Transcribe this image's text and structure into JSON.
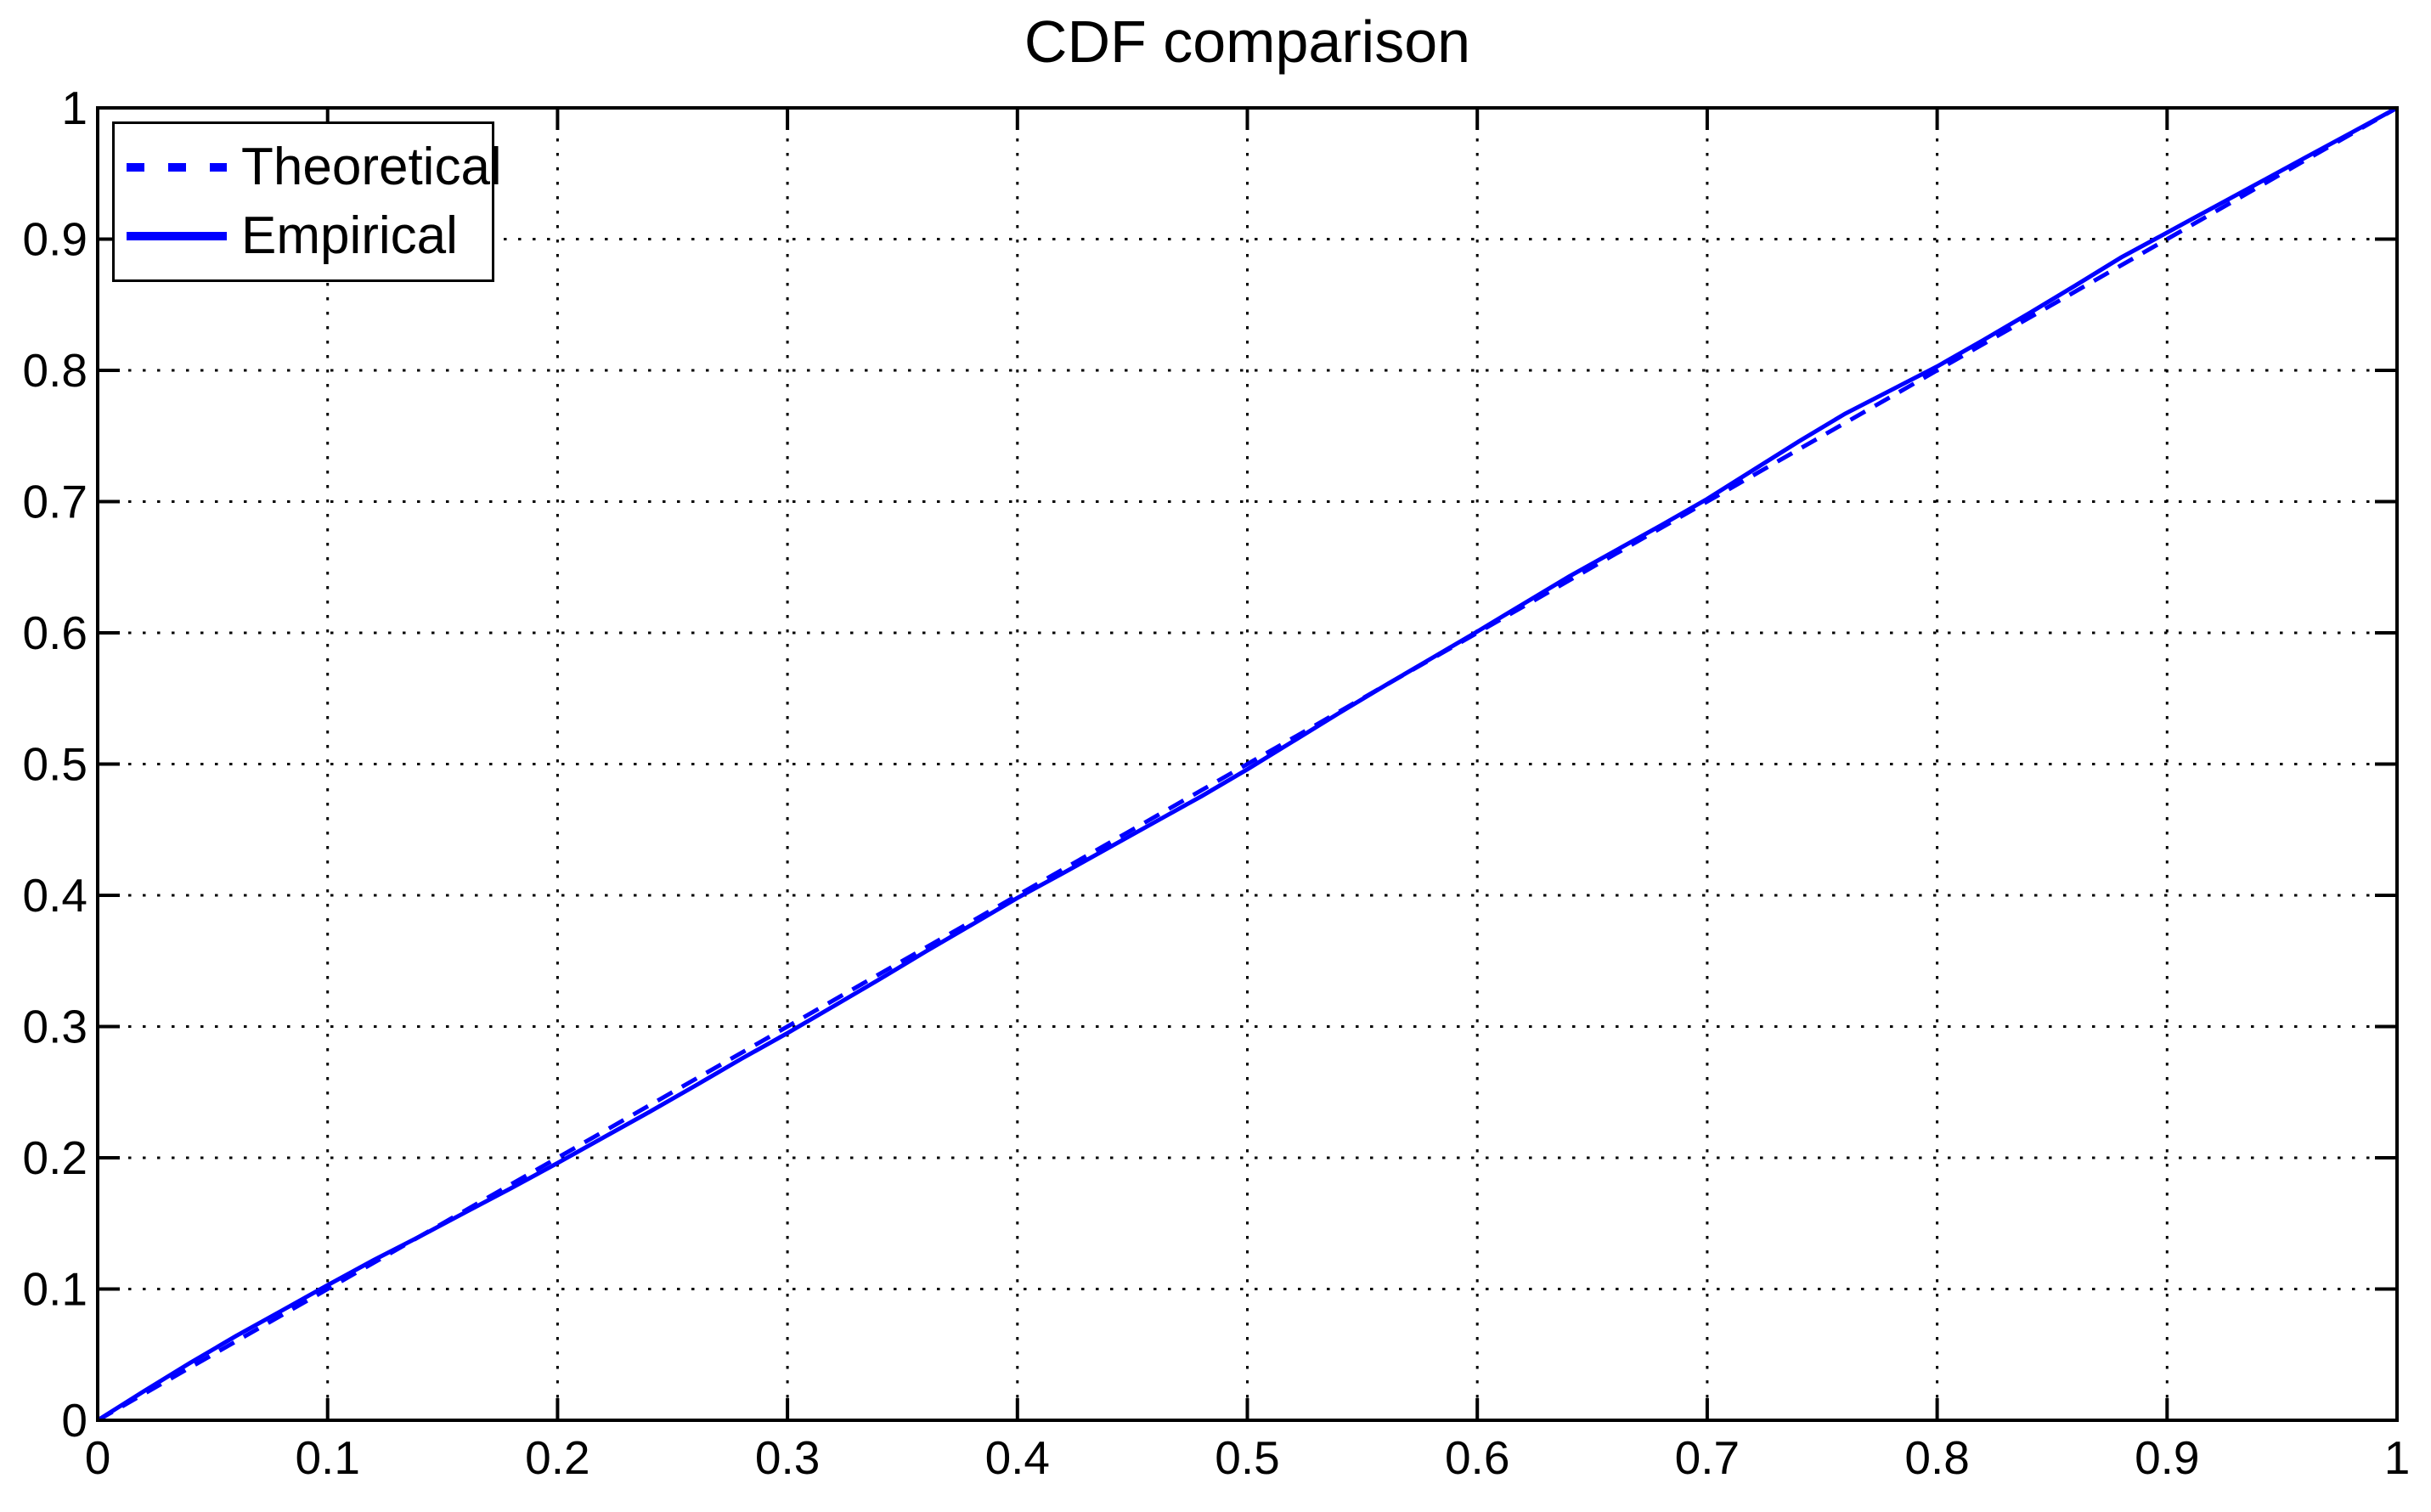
{
  "figure": {
    "background": "#ffffff",
    "title": "CDF comparison"
  },
  "legend": {
    "location": "northwest",
    "items": [
      {
        "label": "Theoretical",
        "line_style": "dashed",
        "color": "#0000ff"
      },
      {
        "label": "Empirical",
        "line_style": "solid",
        "color": "#0000ff"
      }
    ]
  },
  "chart_data": {
    "type": "line",
    "title": "CDF comparison",
    "xlabel": "",
    "ylabel": "",
    "xlim": [
      0,
      1
    ],
    "ylim": [
      0,
      1
    ],
    "xticks": [
      0,
      0.1,
      0.2,
      0.3,
      0.4,
      0.5,
      0.6,
      0.7,
      0.8,
      0.9,
      1
    ],
    "yticks": [
      0,
      0.1,
      0.2,
      0.3,
      0.4,
      0.5,
      0.6,
      0.7,
      0.8,
      0.9,
      1
    ],
    "xtick_labels": [
      "0",
      "0.1",
      "0.2",
      "0.3",
      "0.4",
      "0.5",
      "0.6",
      "0.7",
      "0.8",
      "0.9",
      "1"
    ],
    "ytick_labels": [
      "0",
      "0.1",
      "0.2",
      "0.3",
      "0.4",
      "0.5",
      "0.6",
      "0.7",
      "0.8",
      "0.9",
      "1"
    ],
    "grid": "dotted",
    "grid_color": "#000000",
    "axis_color": "#000000",
    "legend_position": "northwest",
    "series": [
      {
        "name": "Theoretical",
        "style": "dashed",
        "color": "#0000ff",
        "points": [
          [
            0,
            0
          ],
          [
            1,
            1
          ]
        ]
      },
      {
        "name": "Empirical",
        "style": "solid",
        "color": "#0000ff",
        "points": [
          [
            0,
            0
          ],
          [
            0.02,
            0.022
          ],
          [
            0.04,
            0.0435
          ],
          [
            0.06,
            0.064
          ],
          [
            0.08,
            0.0835
          ],
          [
            0.1,
            0.103
          ],
          [
            0.12,
            0.122
          ],
          [
            0.14,
            0.14
          ],
          [
            0.16,
            0.1585
          ],
          [
            0.18,
            0.177
          ],
          [
            0.2,
            0.196
          ],
          [
            0.22,
            0.2155
          ],
          [
            0.24,
            0.235
          ],
          [
            0.26,
            0.255
          ],
          [
            0.28,
            0.2755
          ],
          [
            0.3,
            0.295
          ],
          [
            0.32,
            0.3155
          ],
          [
            0.34,
            0.336
          ],
          [
            0.36,
            0.357
          ],
          [
            0.38,
            0.3775
          ],
          [
            0.4,
            0.398
          ],
          [
            0.42,
            0.417
          ],
          [
            0.44,
            0.4365
          ],
          [
            0.46,
            0.456
          ],
          [
            0.48,
            0.4755
          ],
          [
            0.5,
            0.496
          ],
          [
            0.52,
            0.5175
          ],
          [
            0.54,
            0.539
          ],
          [
            0.56,
            0.56
          ],
          [
            0.58,
            0.5805
          ],
          [
            0.6,
            0.601
          ],
          [
            0.62,
            0.622
          ],
          [
            0.64,
            0.643
          ],
          [
            0.66,
            0.6625
          ],
          [
            0.68,
            0.682
          ],
          [
            0.7,
            0.702
          ],
          [
            0.72,
            0.724
          ],
          [
            0.74,
            0.746
          ],
          [
            0.76,
            0.767
          ],
          [
            0.78,
            0.785
          ],
          [
            0.8,
            0.803
          ],
          [
            0.82,
            0.823
          ],
          [
            0.84,
            0.8435
          ],
          [
            0.86,
            0.8645
          ],
          [
            0.88,
            0.886
          ],
          [
            0.9,
            0.905
          ],
          [
            0.92,
            0.924
          ],
          [
            0.94,
            0.943
          ],
          [
            0.96,
            0.962
          ],
          [
            0.98,
            0.981
          ],
          [
            1,
            1
          ]
        ]
      }
    ]
  }
}
